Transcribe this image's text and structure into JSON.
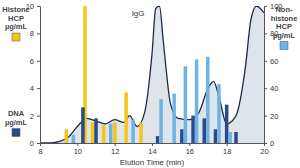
{
  "chart_data": {
    "type": "bar",
    "x": [
      9.6,
      10.3,
      10.6,
      11.0,
      11.6,
      12.2,
      12.8,
      13.6,
      14.3,
      15.0,
      15.6,
      16.2,
      16.8,
      17.4,
      18.0,
      18.5
    ],
    "xlabel": "Elution Time (min)",
    "xlim": [
      8,
      20
    ],
    "xticks": [
      8,
      10,
      12,
      14,
      16,
      18,
      20
    ],
    "ylim": [
      0,
      10
    ],
    "yticks": [
      0,
      2,
      4,
      6,
      8,
      10
    ],
    "y2lim": [
      0,
      100
    ],
    "y2ticks": [
      0,
      20,
      40,
      60,
      80,
      100
    ],
    "series": [
      {
        "name": "Histone HCP µg/mL",
        "color": "#f5c518",
        "values": [
          1.0,
          null,
          10,
          1.5,
          1.3,
          1.5,
          3.7,
          1.5,
          null,
          null,
          null,
          null,
          null,
          null,
          null,
          null
        ]
      },
      {
        "name": "DNA µg/mL",
        "color": "#2b4a8b",
        "values": [
          null,
          2.6,
          null,
          1.8,
          null,
          null,
          null,
          null,
          0.5,
          null,
          1.0,
          2.0,
          1.8,
          1.0,
          2.8,
          0.8
        ]
      },
      {
        "name": "Non-histone HCP µg/mL",
        "color": "#6db4e6",
        "axis": "y2",
        "values": [
          6,
          null,
          null,
          null,
          14,
          null,
          17,
          null,
          32,
          36,
          56,
          61,
          63,
          43,
          8,
          null
        ]
      },
      {
        "type": "area",
        "color": "#1e2a4a",
        "x": [
          8,
          8.5,
          9,
          9.5,
          10,
          10.5,
          11,
          11.5,
          12,
          12.5,
          12.8,
          13.2,
          13.6,
          14,
          14.2,
          14.4,
          14.6,
          15,
          15.4,
          16,
          16.5,
          17,
          17.3,
          17.6,
          18,
          18.5,
          19,
          19.3,
          19.6,
          20
        ],
        "values": [
          0,
          0,
          0.1,
          0.4,
          1.2,
          1.8,
          1.6,
          1.4,
          1.7,
          1.5,
          2.0,
          1.2,
          2.2,
          6.5,
          9.8,
          10.0,
          7.5,
          2.8,
          1.8,
          1.7,
          2.2,
          4.0,
          4.5,
          3.3,
          1.4,
          2.0,
          5.5,
          9.0,
          10.0,
          9.5
        ]
      }
    ],
    "annotations": [
      {
        "text": "IgG",
        "x": 13.6,
        "y": 9.3
      }
    ]
  }
}
